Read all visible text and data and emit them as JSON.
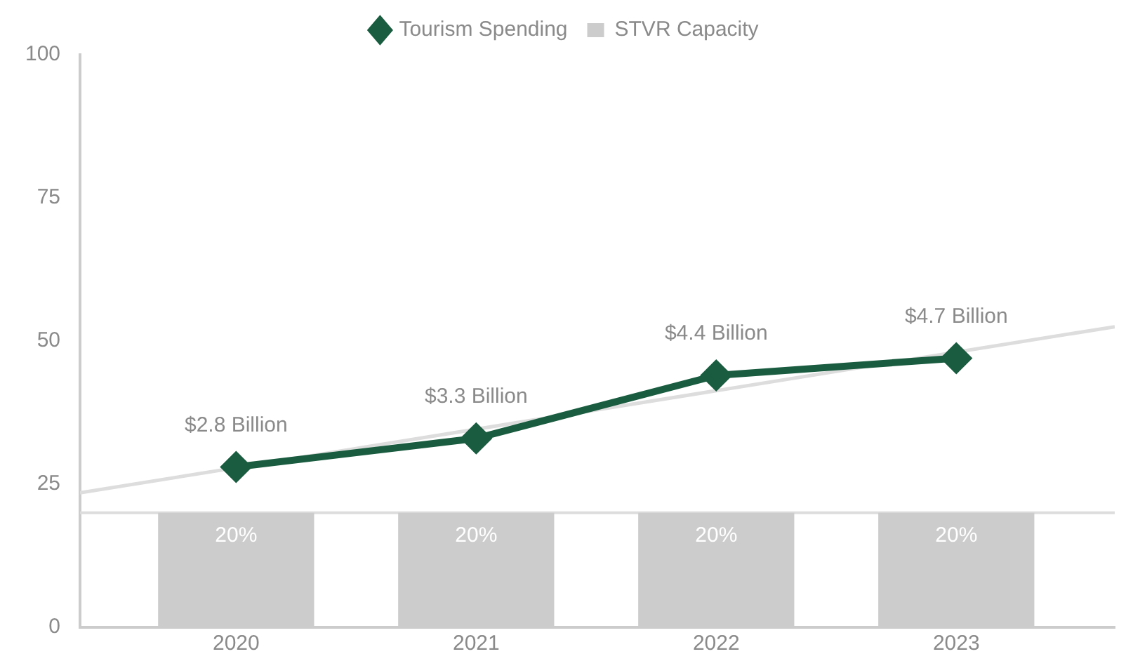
{
  "chart_data": {
    "type": "bar",
    "x": [
      2020,
      2021,
      2022,
      2023
    ],
    "xlim": [
      2019.35,
      2023.66
    ],
    "xticks": [
      2020,
      2021,
      2022,
      2023
    ],
    "ylim": [
      0,
      100
    ],
    "yticks": [
      0,
      25,
      50,
      75,
      100
    ],
    "grid": false,
    "legend": "top",
    "series": [
      {
        "name": "Tourism Spending",
        "type": "line",
        "color": "#1a5c40",
        "marker": "diamond",
        "values": [
          28,
          33,
          44,
          47
        ]
      },
      {
        "name": "STVR Capacity",
        "color": "#cccccc",
        "values": [
          20,
          20,
          20,
          20
        ],
        "value_labels": [
          "20%",
          "20%",
          "20%",
          "20%"
        ]
      },
      {
        "type": "line",
        "color": "#dddddd",
        "marker": "none",
        "x": [
          2019.35,
          2023.66
        ],
        "values": [
          23.5,
          52.5
        ]
      }
    ],
    "annotations": [
      {
        "text": "$2.8 Billion",
        "x": 2020,
        "y": 28
      },
      {
        "text": "$3.3 Billion",
        "x": 2021,
        "y": 33
      },
      {
        "text": "$4.4 Billion",
        "x": 2022,
        "y": 44
      },
      {
        "text": "$4.7 Billion",
        "x": 2023,
        "y": 47
      }
    ],
    "ref_lines": [
      {
        "axis": "y",
        "value": 20,
        "color": "#dddddd"
      }
    ]
  }
}
